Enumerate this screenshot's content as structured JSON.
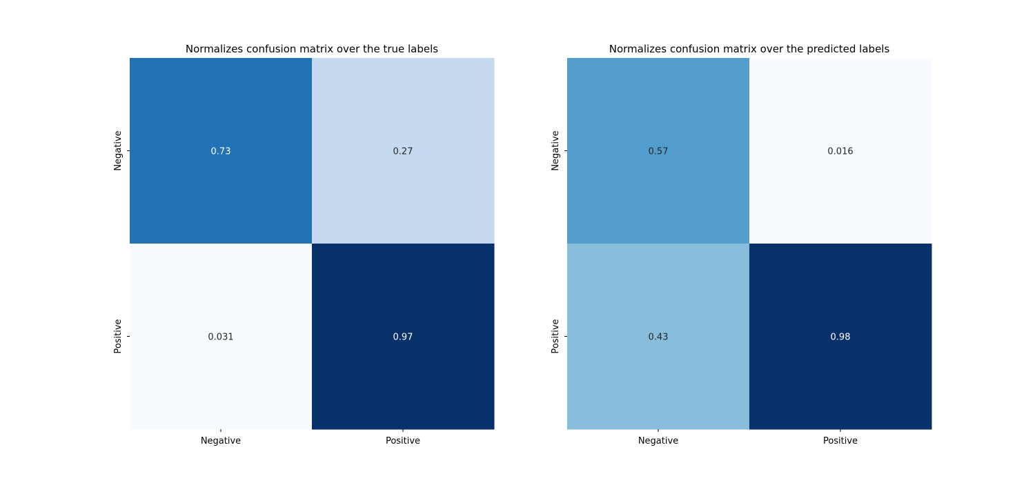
{
  "chart_data": [
    {
      "type": "heatmap",
      "title": "Normalizes confusion matrix over the true labels",
      "row_labels": [
        "Negative",
        "Positive"
      ],
      "col_labels": [
        "Negative",
        "Positive"
      ],
      "values": [
        [
          0.73,
          0.27
        ],
        [
          0.031,
          0.97
        ]
      ],
      "cell_text": [
        [
          "0.73",
          "0.27"
        ],
        [
          "0.031",
          "0.97"
        ]
      ],
      "colormap": "Blues",
      "colorbar": false,
      "xlabel": "",
      "ylabel": ""
    },
    {
      "type": "heatmap",
      "title": "Normalizes confusion matrix over the predicted labels",
      "row_labels": [
        "Negative",
        "Positive"
      ],
      "col_labels": [
        "Negative",
        "Positive"
      ],
      "values": [
        [
          0.57,
          0.016
        ],
        [
          0.43,
          0.98
        ]
      ],
      "cell_text": [
        [
          "0.57",
          "0.016"
        ],
        [
          "0.43",
          "0.98"
        ]
      ],
      "colormap": "Blues",
      "colorbar": false,
      "xlabel": "",
      "ylabel": ""
    }
  ]
}
